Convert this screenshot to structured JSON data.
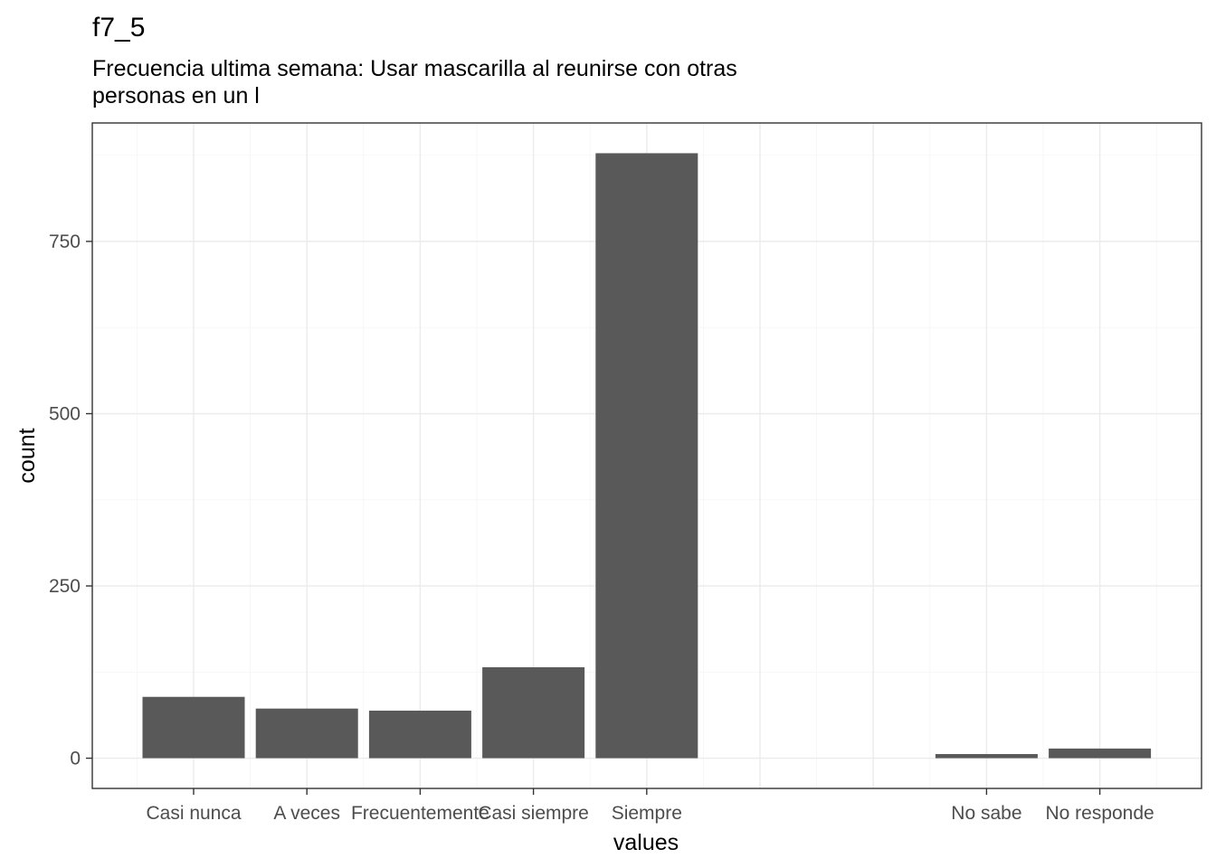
{
  "chart_data": {
    "type": "bar",
    "title": "f7_5",
    "subtitle_lines": [
      "Frecuencia ultima semana: Usar mascarilla al reunirse con otras",
      "personas en un l"
    ],
    "xlabel": "values",
    "ylabel": "count",
    "categories": [
      "Casi nunca",
      "A veces",
      "Frecuentemente",
      "Casi siempre",
      "Siempre",
      "",
      "",
      "No sabe",
      "No responde"
    ],
    "values": [
      89,
      72,
      69,
      132,
      878,
      null,
      null,
      6,
      14
    ],
    "yticks": [
      0,
      250,
      500,
      750
    ],
    "ylim": [
      -43.9,
      921.9
    ],
    "grid": true,
    "legend": "none",
    "bar_color": "#595959"
  }
}
